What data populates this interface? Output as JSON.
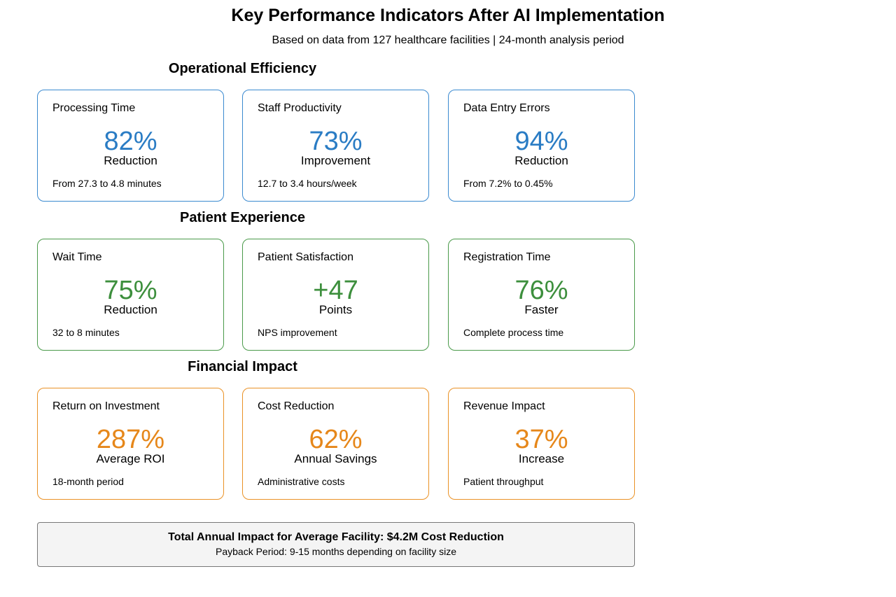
{
  "title": "Key Performance Indicators After AI Implementation",
  "subtitle": "Based on data from 127 healthcare facilities | 24-month analysis period",
  "colors": {
    "operational": "#2a7cc4",
    "patient": "#3d8f3d",
    "financial": "#e6871a"
  },
  "sections": [
    {
      "title": "Operational Efficiency",
      "cards": [
        {
          "label": "Processing Time",
          "value": "82%",
          "sub": "Reduction",
          "note": "From 27.3 to 4.8 minutes"
        },
        {
          "label": "Staff Productivity",
          "value": "73%",
          "sub": "Improvement",
          "note": "12.7 to 3.4 hours/week"
        },
        {
          "label": "Data Entry Errors",
          "value": "94%",
          "sub": "Reduction",
          "note": "From 7.2% to 0.45%"
        }
      ]
    },
    {
      "title": "Patient Experience",
      "cards": [
        {
          "label": "Wait Time",
          "value": "75%",
          "sub": "Reduction",
          "note": "32 to 8 minutes"
        },
        {
          "label": "Patient Satisfaction",
          "value": "+47",
          "sub": "Points",
          "note": "NPS improvement"
        },
        {
          "label": "Registration Time",
          "value": "76%",
          "sub": "Faster",
          "note": "Complete process time"
        }
      ]
    },
    {
      "title": "Financial Impact",
      "cards": [
        {
          "label": "Return on Investment",
          "value": "287%",
          "sub": "Average ROI",
          "note": "18-month period"
        },
        {
          "label": "Cost Reduction",
          "value": "62%",
          "sub": "Annual Savings",
          "note": "Administrative costs"
        },
        {
          "label": "Revenue Impact",
          "value": "37%",
          "sub": "Increase",
          "note": "Patient throughput"
        }
      ]
    }
  ],
  "summary": {
    "headline": "Total Annual Impact for Average Facility: $4.2M Cost Reduction",
    "detail": "Payback Period: 9-15 months depending on facility size"
  }
}
